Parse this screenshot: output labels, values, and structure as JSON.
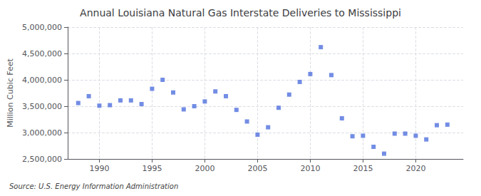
{
  "chart_data": {
    "type": "scatter",
    "title": "Annual Louisiana Natural Gas Interstate Deliveries to Mississippi",
    "ylabel": "Million Cubic Feet",
    "annotation": "Source: U.S. Energy Information Administration",
    "marker": "square",
    "x": [
      1988,
      1989,
      1990,
      1991,
      1992,
      1993,
      1994,
      1995,
      1996,
      1997,
      1998,
      1999,
      2000,
      2001,
      2002,
      2003,
      2004,
      2005,
      2006,
      2007,
      2008,
      2009,
      2010,
      2011,
      2012,
      2013,
      2014,
      2015,
      2016,
      2017,
      2018,
      2019,
      2020,
      2021,
      2022,
      2023
    ],
    "values": [
      3560000,
      3690000,
      3510000,
      3520000,
      3610000,
      3610000,
      3540000,
      3830000,
      4000000,
      3760000,
      3440000,
      3500000,
      3590000,
      3780000,
      3690000,
      3430000,
      3210000,
      2960000,
      3100000,
      3470000,
      3720000,
      3960000,
      4110000,
      4620000,
      4090000,
      3270000,
      2930000,
      2940000,
      2730000,
      2600000,
      2980000,
      2980000,
      2940000,
      2870000,
      3140000,
      3150000
    ],
    "xlim": [
      1987.0,
      2024.5
    ],
    "xticks": [
      1990,
      1995,
      2000,
      2005,
      2010,
      2015,
      2020
    ],
    "ylim": [
      2500000,
      5000000
    ],
    "yticks": [
      {
        "value": 2500000,
        "label": "2,500,000"
      },
      {
        "value": 3000000,
        "label": "3,000,000"
      },
      {
        "value": 3500000,
        "label": "3,500,000"
      },
      {
        "value": 4000000,
        "label": "4,000,000"
      },
      {
        "value": 4500000,
        "label": "4,500,000"
      },
      {
        "value": 5000000,
        "label": "5,000,000"
      }
    ],
    "grid": true
  }
}
